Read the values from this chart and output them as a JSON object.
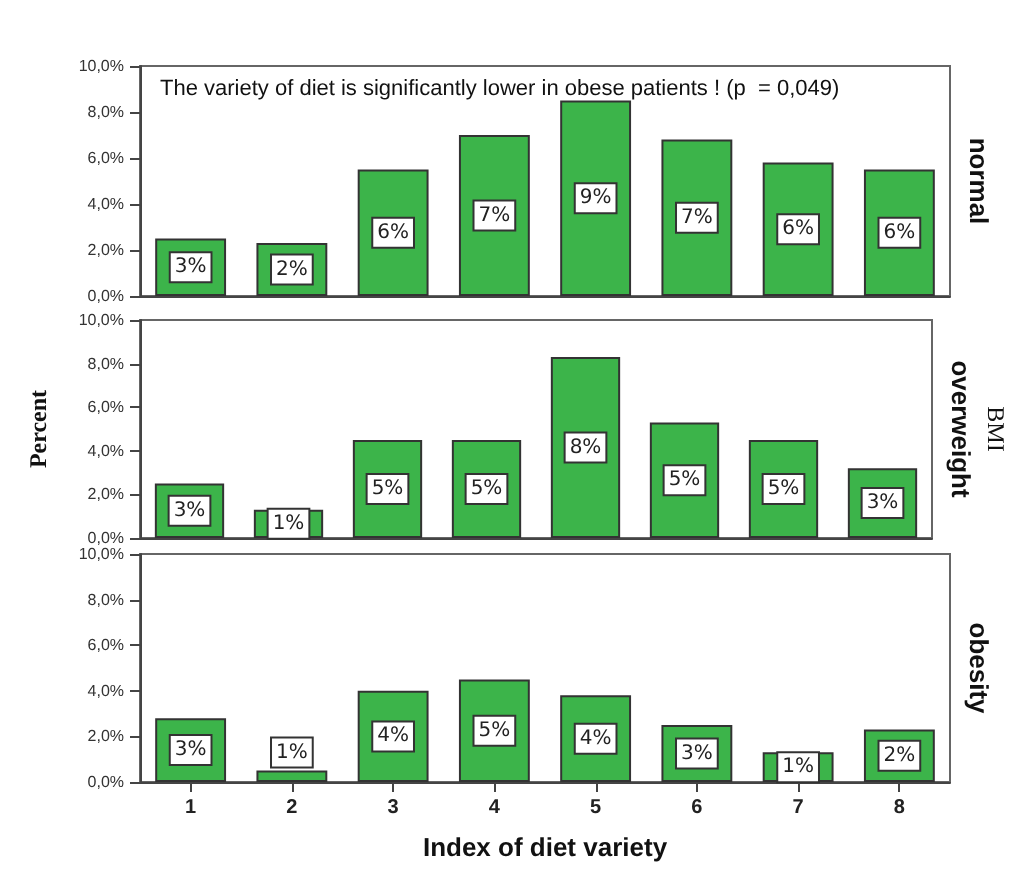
{
  "chart_data": [
    {
      "type": "bar",
      "y2label": "normal",
      "annotations": [
        "The variety of diet is significantly lower in obese patients ! (p  = 0,049)"
      ],
      "categories": [
        "1",
        "2",
        "3",
        "4",
        "5",
        "6",
        "7",
        "8"
      ],
      "color": "#3cb44a",
      "values": [
        2.5,
        2.3,
        5.5,
        7.0,
        8.5,
        6.8,
        5.8,
        5.5
      ],
      "value_labels": [
        "3%",
        "2%",
        "6%",
        "7%",
        "9%",
        "7%",
        "6%",
        "6%"
      ],
      "ylim": [
        0,
        10
      ],
      "yticks": [
        {
          "value": 0,
          "label": "0,0%"
        },
        {
          "value": 2,
          "label": "2,0%"
        },
        {
          "value": 4,
          "label": "4,0%"
        },
        {
          "value": 6,
          "label": "6,0%"
        },
        {
          "value": 8,
          "label": "8,0%"
        },
        {
          "value": 10,
          "label": "10,0%"
        }
      ],
      "tick_labels": "y"
    },
    {
      "type": "bar",
      "y2label": "overweight",
      "y3label": "BMI",
      "ylabel": "Percent",
      "categories": [
        "1",
        "2",
        "3",
        "4",
        "5",
        "6",
        "7",
        "8"
      ],
      "color": "#3cb44a",
      "values": [
        2.5,
        1.3,
        4.5,
        4.5,
        8.3,
        5.3,
        4.5,
        3.2
      ],
      "value_labels": [
        "3%",
        "1%",
        "5%",
        "5%",
        "8%",
        "5%",
        "5%",
        "3%"
      ],
      "ylim": [
        0,
        10
      ],
      "yticks": [
        {
          "value": 0,
          "label": "0,0%"
        },
        {
          "value": 2,
          "label": "2,0%"
        },
        {
          "value": 4,
          "label": "4,0%"
        },
        {
          "value": 6,
          "label": "6,0%"
        },
        {
          "value": 8,
          "label": "8,0%"
        },
        {
          "value": 10,
          "label": "10,0%"
        }
      ],
      "tick_labels": "y"
    },
    {
      "type": "bar",
      "y2label": "obesity",
      "xlabel": "Index of diet variety",
      "categories": [
        "1",
        "2",
        "3",
        "4",
        "5",
        "6",
        "7",
        "8"
      ],
      "color": "#3cb44a",
      "values": [
        2.8,
        0.5,
        4.0,
        4.5,
        3.8,
        2.5,
        1.3,
        2.3
      ],
      "value_labels": [
        "3%",
        "1%",
        "4%",
        "5%",
        "4%",
        "3%",
        "1%",
        "2%"
      ],
      "ylim": [
        0,
        10
      ],
      "yticks": [
        {
          "value": 0,
          "label": "0,0%"
        },
        {
          "value": 2,
          "label": "2,0%"
        },
        {
          "value": 4,
          "label": "4,0%"
        },
        {
          "value": 6,
          "label": "6,0%"
        },
        {
          "value": 8,
          "label": "8,0%"
        },
        {
          "value": 10,
          "label": "10,0%"
        }
      ]
    }
  ]
}
